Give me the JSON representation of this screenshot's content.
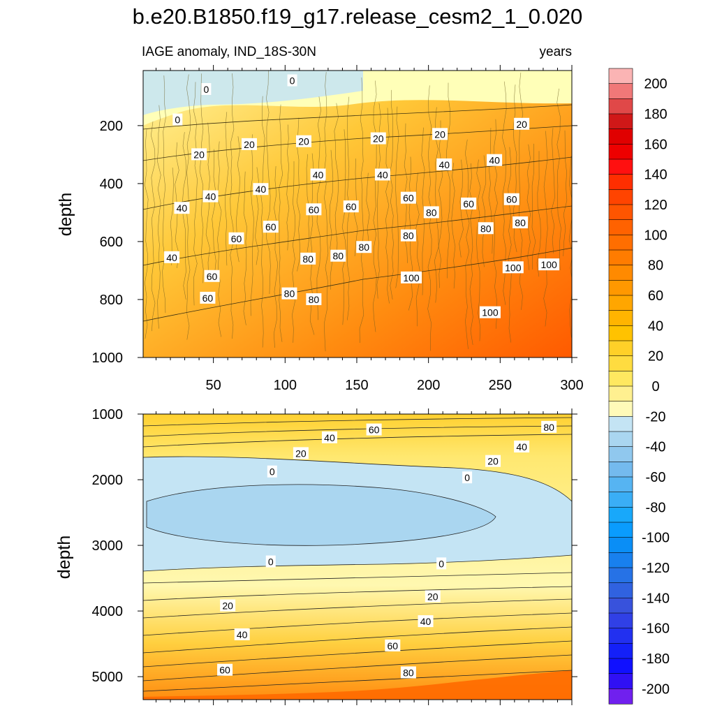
{
  "chart_data": {
    "type": "heatmap",
    "title": "b.e20.B1850.f19_g17.release_cesm2_1_0.020",
    "left_subtitle": "IAGE anomaly, IND_18S-30N",
    "right_subtitle": "years",
    "xlabel": "",
    "ylabel": "depth",
    "xlim": [
      1,
      300
    ],
    "x_ticks": [
      50,
      100,
      150,
      200,
      250,
      300
    ],
    "panels": [
      {
        "name": "upper",
        "ylim": [
          10,
          1000
        ],
        "y_ticks": [
          200,
          400,
          600,
          800,
          1000
        ],
        "contour_labels": [
          {
            "value": 0,
            "x": 45,
            "depth": 75
          },
          {
            "value": 0,
            "x": 105,
            "depth": 45
          },
          {
            "value": 0,
            "x": 25,
            "depth": 180
          },
          {
            "value": 20,
            "x": 40,
            "depth": 300
          },
          {
            "value": 20,
            "x": 75,
            "depth": 265
          },
          {
            "value": 20,
            "x": 113,
            "depth": 255
          },
          {
            "value": 20,
            "x": 165,
            "depth": 245
          },
          {
            "value": 20,
            "x": 208,
            "depth": 230
          },
          {
            "value": 20,
            "x": 265,
            "depth": 195
          },
          {
            "value": 40,
            "x": 28,
            "depth": 485
          },
          {
            "value": 40,
            "x": 48,
            "depth": 445
          },
          {
            "value": 40,
            "x": 83,
            "depth": 420
          },
          {
            "value": 40,
            "x": 123,
            "depth": 370
          },
          {
            "value": 40,
            "x": 168,
            "depth": 370
          },
          {
            "value": 40,
            "x": 211,
            "depth": 335
          },
          {
            "value": 40,
            "x": 246,
            "depth": 320
          },
          {
            "value": 40,
            "x": 21,
            "depth": 655
          },
          {
            "value": 60,
            "x": 120,
            "depth": 490
          },
          {
            "value": 60,
            "x": 146,
            "depth": 480
          },
          {
            "value": 60,
            "x": 186,
            "depth": 450
          },
          {
            "value": 60,
            "x": 228,
            "depth": 470
          },
          {
            "value": 60,
            "x": 258,
            "depth": 455
          },
          {
            "value": 60,
            "x": 66,
            "depth": 590
          },
          {
            "value": 60,
            "x": 90,
            "depth": 550
          },
          {
            "value": 60,
            "x": 49,
            "depth": 720
          },
          {
            "value": 60,
            "x": 46,
            "depth": 795
          },
          {
            "value": 80,
            "x": 202,
            "depth": 500
          },
          {
            "value": 80,
            "x": 264,
            "depth": 535
          },
          {
            "value": 80,
            "x": 240,
            "depth": 555
          },
          {
            "value": 80,
            "x": 186,
            "depth": 580
          },
          {
            "value": 80,
            "x": 155,
            "depth": 620
          },
          {
            "value": 80,
            "x": 137,
            "depth": 650
          },
          {
            "value": 80,
            "x": 116,
            "depth": 660
          },
          {
            "value": 80,
            "x": 103,
            "depth": 780
          },
          {
            "value": 80,
            "x": 120,
            "depth": 800
          },
          {
            "value": 100,
            "x": 188,
            "depth": 725
          },
          {
            "value": 100,
            "x": 259,
            "depth": 690
          },
          {
            "value": 100,
            "x": 284,
            "depth": 680
          },
          {
            "value": 100,
            "x": 243,
            "depth": 845
          }
        ]
      },
      {
        "name": "lower",
        "ylim": [
          1000,
          5350
        ],
        "y_ticks": [
          1000,
          2000,
          3000,
          4000,
          5000
        ],
        "contour_labels": [
          {
            "value": 60,
            "x": 162,
            "depth": 1240
          },
          {
            "value": 80,
            "x": 284,
            "depth": 1200
          },
          {
            "value": 40,
            "x": 131,
            "depth": 1360
          },
          {
            "value": 40,
            "x": 265,
            "depth": 1500
          },
          {
            "value": 20,
            "x": 111,
            "depth": 1600
          },
          {
            "value": 20,
            "x": 245,
            "depth": 1720
          },
          {
            "value": 0,
            "x": 91,
            "depth": 1880
          },
          {
            "value": 0,
            "x": 227,
            "depth": 1970
          },
          {
            "value": 0,
            "x": 90,
            "depth": 3250
          },
          {
            "value": 0,
            "x": 209,
            "depth": 3280
          },
          {
            "value": 20,
            "x": 60,
            "depth": 3920
          },
          {
            "value": 20,
            "x": 203,
            "depth": 3780
          },
          {
            "value": 40,
            "x": 70,
            "depth": 4360
          },
          {
            "value": 40,
            "x": 198,
            "depth": 4160
          },
          {
            "value": 60,
            "x": 175,
            "depth": 4530
          },
          {
            "value": 60,
            "x": 58,
            "depth": 4900
          },
          {
            "value": 80,
            "x": 186,
            "depth": 4940
          }
        ]
      }
    ],
    "colorbar": {
      "ticks": [
        200,
        180,
        160,
        140,
        120,
        100,
        80,
        60,
        40,
        20,
        0,
        -20,
        -40,
        -60,
        -80,
        -100,
        -120,
        -140,
        -160,
        -180,
        -200
      ],
      "tick_labels": [
        "200",
        "180",
        "160",
        "140",
        "120",
        "100",
        "80",
        "60",
        "40",
        "20",
        "0",
        "-20",
        "-40",
        "-60",
        "-80",
        "-100",
        "-120",
        "-140",
        "-160",
        "-180",
        "-200"
      ],
      "levels_step": 10,
      "colors": [
        "#fbb4b4",
        "#f07878",
        "#e04848",
        "#d01818",
        "#e00000",
        "#ee0000",
        "#ff1010",
        "#ff2e00",
        "#ff4400",
        "#ff5500",
        "#ff6200",
        "#ff6e00",
        "#ff7c00",
        "#ff8a00",
        "#ff9800",
        "#ffa600",
        "#ffb400",
        "#ffc200",
        "#ffd028",
        "#ffdc40",
        "#ffe860",
        "#fff090",
        "#fffab8",
        "#c4e4f4",
        "#aad6f0",
        "#90c8ee",
        "#74baee",
        "#56b4f2",
        "#3aaef6",
        "#18a8fa",
        "#0a9cfe",
        "#0a8ef6",
        "#1880ee",
        "#2672e6",
        "#3062e0",
        "#3852dc",
        "#3040e6",
        "#2230f0",
        "#1420f8",
        "#1010ff",
        "#3010f4",
        "#7020ee"
      ]
    }
  }
}
